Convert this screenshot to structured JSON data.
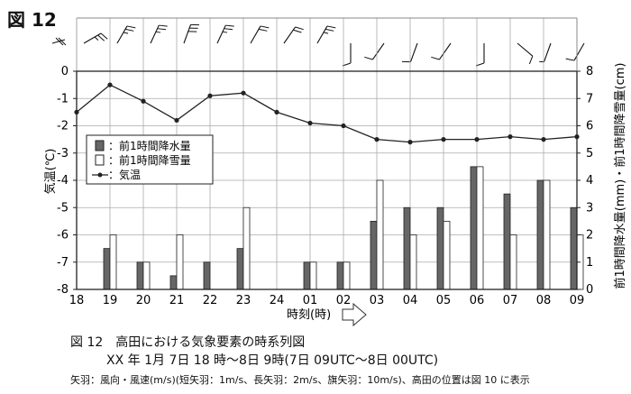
{
  "figure_label": "図 12",
  "caption": {
    "line1": "図 12　高田における気象要素の時系列図",
    "line2": "XX 年 1月 7日 18 時～8日 9時(7日 09UTC～8日 00UTC)",
    "line3": "矢羽：風向・風速(m/s)(短矢羽：1m/s、長矢羽：2m/s、旗矢羽：10m/s)、高田の位置は図 10 に表示"
  },
  "chart_data": {
    "type": "bar+line",
    "categories": [
      "18",
      "19",
      "20",
      "21",
      "22",
      "23",
      "24",
      "01",
      "02",
      "03",
      "04",
      "05",
      "06",
      "07",
      "08",
      "09"
    ],
    "xlabel": "時刻(時)",
    "ylabel_left": "気温(℃)",
    "ylabel_right": "前1時間降水量(mm)・前1時間降雪量(cm)",
    "y_left_range": [
      -8,
      0
    ],
    "y_left_ticks": [
      "0",
      "-1",
      "-2",
      "-3",
      "-4",
      "-5",
      "-6",
      "-7",
      "-8"
    ],
    "y_right_range": [
      0,
      8
    ],
    "y_right_ticks": [
      "8",
      "7",
      "6",
      "5",
      "4",
      "3",
      "2",
      "1",
      "0"
    ],
    "grid": true,
    "legend_position": "left-middle",
    "legend": [
      "：前1時間降水量",
      "：前1時間降雪量",
      "：気温"
    ],
    "series": [
      {
        "name": "前1時間降水量",
        "kind": "bar",
        "color": "#666666",
        "values": [
          null,
          1.5,
          1,
          0.5,
          1,
          1.5,
          null,
          1,
          1,
          2.5,
          3,
          3,
          4.5,
          3.5,
          4,
          3
        ]
      },
      {
        "name": "前1時間降雪量",
        "kind": "bar",
        "color": "#ffffff",
        "values": [
          null,
          2,
          1,
          2,
          0,
          3,
          null,
          1,
          1,
          4,
          2,
          2.5,
          4.5,
          2,
          4,
          2
        ]
      },
      {
        "name": "気温",
        "kind": "line",
        "color": "#222222",
        "values": [
          -1.5,
          -0.5,
          -1.1,
          -1.8,
          -0.9,
          -0.8,
          -1.5,
          -1.9,
          -2.0,
          -2.5,
          -2.6,
          -2.5,
          -2.5,
          -2.4,
          -2.5,
          -2.4
        ]
      }
    ],
    "wind": [
      {
        "dir": 60,
        "speed": 5
      },
      {
        "dir": 30,
        "speed": 5
      },
      {
        "dir": 25,
        "speed": 5
      },
      {
        "dir": 20,
        "speed": 6
      },
      {
        "dir": 25,
        "speed": 5
      },
      {
        "dir": 30,
        "speed": 4
      },
      {
        "dir": 35,
        "speed": 4
      },
      {
        "dir": 30,
        "speed": 5
      },
      {
        "dir": 180,
        "speed": 2
      },
      {
        "dir": 215,
        "speed": 2
      },
      {
        "dir": 200,
        "speed": 2
      },
      {
        "dir": 215,
        "speed": 2
      },
      {
        "dir": 180,
        "speed": 2
      },
      {
        "dir": 130,
        "speed": 2
      },
      {
        "dir": 200,
        "speed": 1
      },
      {
        "dir": 210,
        "speed": 2
      }
    ]
  }
}
